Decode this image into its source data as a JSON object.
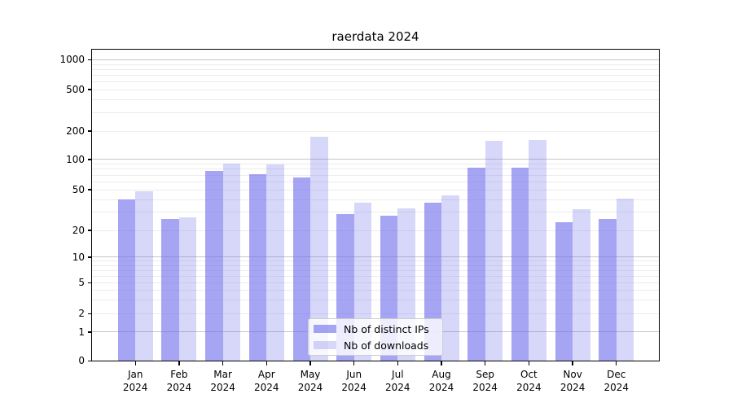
{
  "title": "raerdata 2024",
  "chart_data": {
    "type": "bar",
    "title": "raerdata 2024",
    "categories": [
      "Jan",
      "Feb",
      "Mar",
      "Apr",
      "May",
      "Jun",
      "Jul",
      "Aug",
      "Sep",
      "Oct",
      "Nov",
      "Dec"
    ],
    "category_year": "2024",
    "series": [
      {
        "name": "Nb of distinct IPs",
        "color": "rgba(110,110,235,0.62)",
        "color_flat": "#a5a5f2",
        "values": [
          40,
          26,
          77,
          71,
          66,
          29,
          28,
          37,
          83,
          83,
          24,
          26
        ]
      },
      {
        "name": "Nb of downloads",
        "color": "rgba(110,110,235,0.28)",
        "color_flat": "#d6d6f9",
        "values": [
          48,
          27,
          92,
          90,
          175,
          37,
          33,
          44,
          158,
          162,
          32,
          41
        ]
      }
    ],
    "yscale": "symlog",
    "yticks": [
      0,
      1,
      2,
      5,
      10,
      20,
      50,
      100,
      200,
      500,
      1000
    ],
    "ylim": [
      0,
      1280
    ],
    "xlabel": "",
    "ylabel": "",
    "grid": true,
    "legend_position": "lower center"
  },
  "colors": {
    "background": "#ffffff",
    "major_grid": "#c6c6c6",
    "minor_grid": "#ececec",
    "spine": "#000000",
    "legend_border": "#cccccc"
  }
}
